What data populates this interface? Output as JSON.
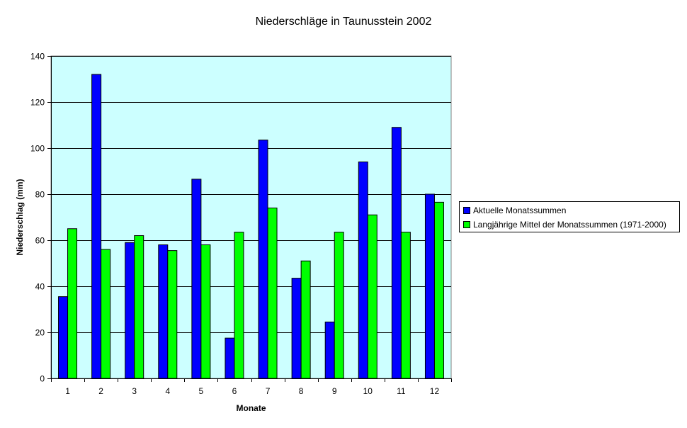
{
  "chart_data": {
    "type": "bar",
    "title": "Niederschläge in Taunusstein 2002",
    "xlabel": "Monate",
    "ylabel": "Niederschlag (mm)",
    "categories": [
      "1",
      "2",
      "3",
      "4",
      "5",
      "6",
      "7",
      "8",
      "9",
      "10",
      "11",
      "12"
    ],
    "ylim": [
      0,
      140
    ],
    "yticks": [
      "0",
      "20",
      "40",
      "60",
      "80",
      "100",
      "120",
      "140"
    ],
    "series": [
      {
        "name": "Aktuelle Monatssummen",
        "color": "#0000ff",
        "values": [
          35.5,
          132,
          59,
          58,
          86.5,
          17.5,
          103.5,
          43.5,
          24.5,
          94,
          109,
          80
        ]
      },
      {
        "name": "Langjährige Mittel der Monatssummen (1971-2000)",
        "color": "#00ff00",
        "values": [
          65,
          56,
          62,
          55.5,
          58,
          63.5,
          74,
          51,
          63.5,
          71,
          63.5,
          76.5
        ]
      }
    ],
    "plot_background": "#ccffff",
    "grid": true,
    "legend_position": "right"
  }
}
